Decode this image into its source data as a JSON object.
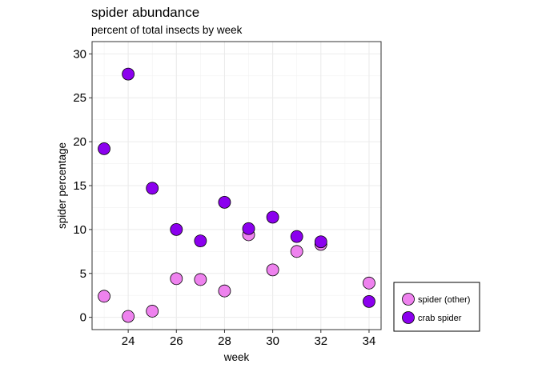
{
  "chart_data": {
    "type": "scatter",
    "title": "spider abundance",
    "subtitle": "percent of total insects by week",
    "xlabel": "week",
    "ylabel": "spider percentage",
    "xlim": [
      22.5,
      34.5
    ],
    "ylim": [
      -1.4,
      31.4
    ],
    "xticks": [
      24,
      26,
      28,
      30,
      32,
      34
    ],
    "yticks": [
      0,
      5,
      10,
      15,
      20,
      25,
      30
    ],
    "grid": true,
    "legend_position": "bottom-right, outside plot",
    "series": [
      {
        "name": "spider (other)",
        "color": "#ee82ee",
        "points": [
          {
            "x": 23,
            "y": 2.4
          },
          {
            "x": 24,
            "y": 0.1
          },
          {
            "x": 25,
            "y": 0.7
          },
          {
            "x": 26,
            "y": 4.4
          },
          {
            "x": 27,
            "y": 4.3
          },
          {
            "x": 28,
            "y": 3.0
          },
          {
            "x": 29,
            "y": 9.4
          },
          {
            "x": 30,
            "y": 5.4
          },
          {
            "x": 31,
            "y": 7.5
          },
          {
            "x": 32,
            "y": 8.3
          },
          {
            "x": 34,
            "y": 3.9
          }
        ]
      },
      {
        "name": "crab spider",
        "color": "#8b00ee",
        "points": [
          {
            "x": 23,
            "y": 19.2
          },
          {
            "x": 24,
            "y": 27.7
          },
          {
            "x": 25,
            "y": 14.7
          },
          {
            "x": 26,
            "y": 10.0
          },
          {
            "x": 27,
            "y": 8.7
          },
          {
            "x": 28,
            "y": 13.1
          },
          {
            "x": 29,
            "y": 10.1
          },
          {
            "x": 30,
            "y": 11.4
          },
          {
            "x": 31,
            "y": 9.2
          },
          {
            "x": 32,
            "y": 8.6
          },
          {
            "x": 34,
            "y": 1.8
          }
        ]
      }
    ]
  }
}
